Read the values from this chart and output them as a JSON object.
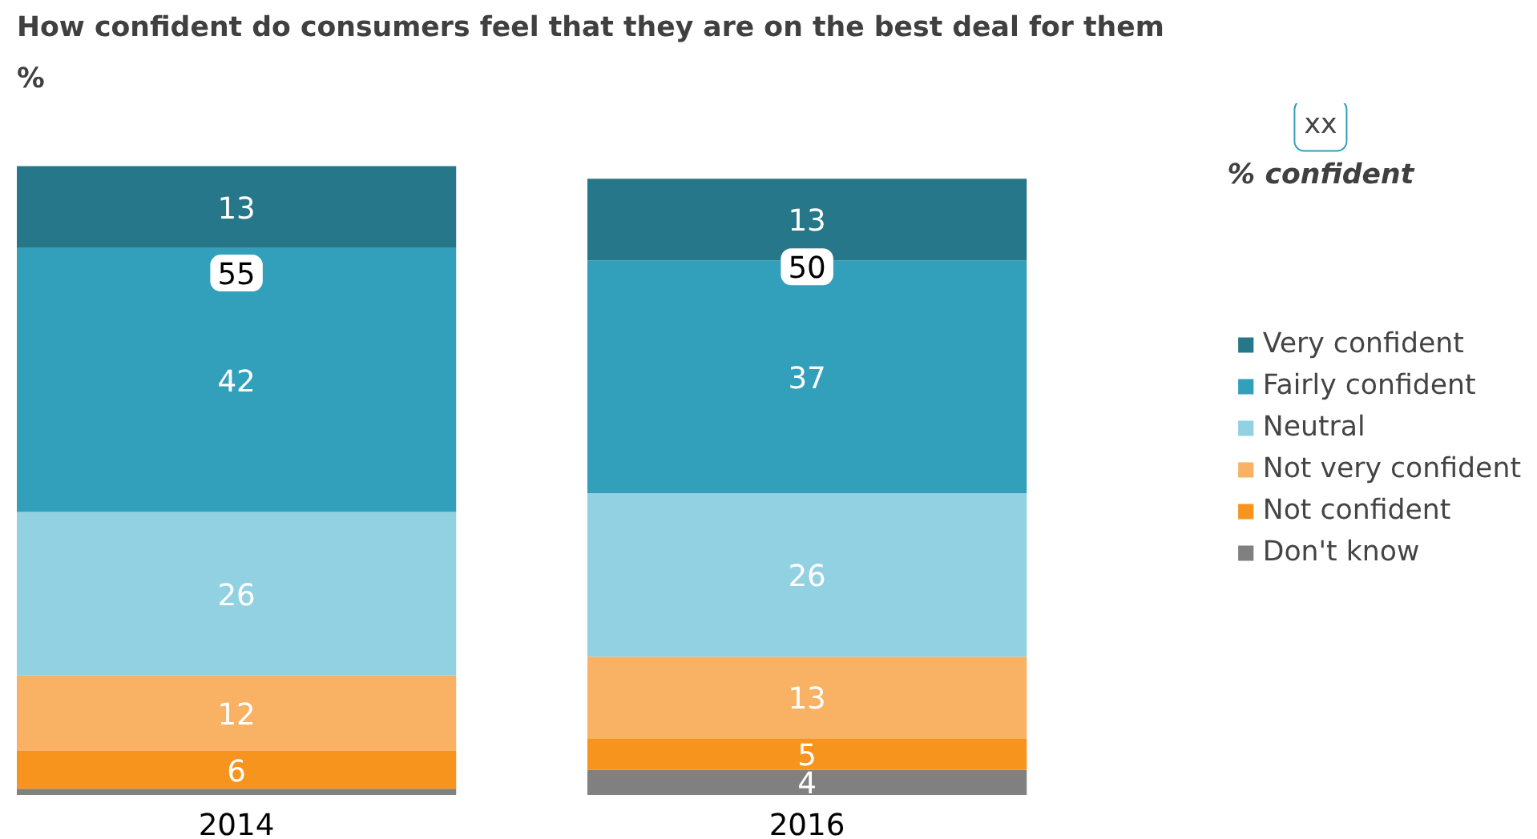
{
  "chart_data": {
    "type": "bar",
    "stacked": true,
    "title": "How confident do consumers feel that they are on the best deal for them",
    "subtitle": "%",
    "categories": [
      "2014",
      "2016"
    ],
    "series": [
      {
        "name": "Don't know",
        "color": "#808080",
        "values": [
          1,
          4
        ],
        "value_labels": [
          null,
          "4"
        ]
      },
      {
        "name": "Not confident",
        "color": "#f7941d",
        "values": [
          6,
          5
        ],
        "value_labels": [
          "6",
          "5"
        ]
      },
      {
        "name": "Not very confident",
        "color": "#f9b163",
        "values": [
          12,
          13
        ],
        "value_labels": [
          "12",
          "13"
        ]
      },
      {
        "name": "Neutral",
        "color": "#92d1e2",
        "values": [
          26,
          26
        ],
        "value_labels": [
          "26",
          "26"
        ]
      },
      {
        "name": "Fairly confident",
        "color": "#329fbb",
        "values": [
          42,
          37
        ],
        "value_labels": [
          "42",
          "37"
        ]
      },
      {
        "name": "Very confident",
        "color": "#267789",
        "values": [
          13,
          13
        ],
        "value_labels": [
          "13",
          "13"
        ]
      }
    ],
    "annotations": [
      {
        "text": "55",
        "x": "2014",
        "y": 83
      },
      {
        "text": "50",
        "x": "2016",
        "y": 84
      },
      "xx",
      "% confident"
    ],
    "legend": "right",
    "grid": false
  }
}
